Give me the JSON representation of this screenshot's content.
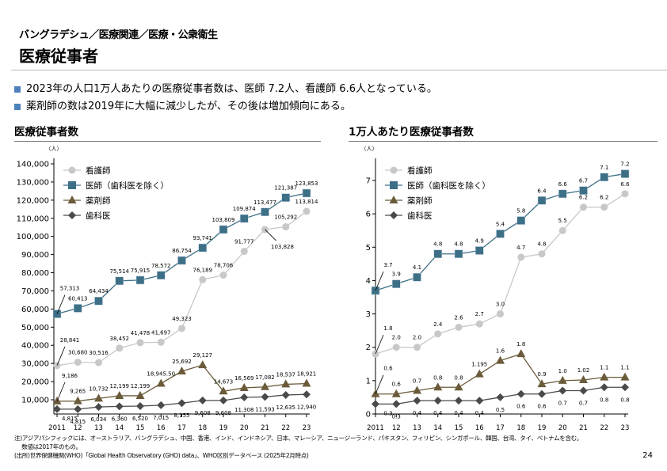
{
  "header": {
    "breadcrumb": "バングラデシュ／医療関連／医療・公衆衛生",
    "title": "医療従事者"
  },
  "bullets": [
    "2023年の人口1万人あたりの医療従事者数は、医師 7.2人、看護師 6.6人となっている。",
    "薬剤師の数は2019年に大幅に減少したが、その後は増加傾向にある。"
  ],
  "colors": {
    "nurse": "#c8c8c8",
    "doctor": "#3d6f86",
    "pharmacist": "#6b5b3a",
    "dentist": "#4a4a4a",
    "bullet": "#4f81bd"
  },
  "chart_data": [
    {
      "type": "line",
      "title": "医療従事者数",
      "unit": "（人）",
      "categories": [
        "2011",
        "12",
        "13",
        "14",
        "15",
        "16",
        "17",
        "18",
        "19",
        "20",
        "21",
        "22",
        "23"
      ],
      "ylim": [
        2000,
        140000
      ],
      "yticks": [
        "10,000",
        "20,000",
        "30,000",
        "40,000",
        "50,000",
        "60,000",
        "70,000",
        "80,000",
        "90,000",
        "100,000",
        "110,000",
        "120,000",
        "130,000",
        "140,000"
      ],
      "ytick_values": [
        10000,
        20000,
        30000,
        40000,
        50000,
        60000,
        70000,
        80000,
        90000,
        100000,
        110000,
        120000,
        130000,
        140000
      ],
      "legend": "top-left",
      "series": [
        {
          "name": "看護師",
          "marker": "circle",
          "values": [
            28841,
            30680,
            30516,
            38452,
            41478,
            41697,
            49323,
            76189,
            78706,
            91777,
            103828,
            105292,
            113814
          ],
          "labels": [
            "28,841",
            "30,680",
            "30,516",
            "38,452",
            "41,478",
            "41,697",
            "49,323",
            "76,189",
            "78,706",
            "91,777",
            "103,828",
            "105,292",
            "113,814"
          ]
        },
        {
          "name": "医師（歯科医を除く）",
          "marker": "square",
          "values": [
            57313,
            60413,
            64434,
            75514,
            75915,
            78572,
            86754,
            93741,
            103809,
            109874,
            113477,
            121387,
            123853
          ],
          "labels": [
            "57,313",
            "60,413",
            "64,434",
            "75,514",
            "75,915",
            "78,572",
            "86,754",
            "93,741",
            "103,809",
            "109,874",
            "113,477",
            "121,387",
            "123,853"
          ]
        },
        {
          "name": "薬剤師",
          "marker": "triangle",
          "values": [
            9186,
            9265,
            10732,
            12199,
            12199,
            18945.5,
            25692,
            29127,
            14673,
            16569,
            17082,
            18537,
            18921
          ],
          "labels": [
            "9,186",
            "9,265",
            "10,732",
            "12,199",
            "12,199",
            "18,945.50",
            "25,692",
            "29,127",
            "14,673",
            "16,569",
            "17,082",
            "18,537",
            "18,921"
          ]
        },
        {
          "name": "歯科医",
          "marker": "diamond",
          "values": [
            4815,
            4815,
            6034,
            6360,
            6520,
            7015,
            8155,
            9608,
            9608,
            11308,
            11593,
            12635,
            12940
          ],
          "labels": [
            "4,815",
            "4,815",
            "6,034",
            "6,360",
            "6,520",
            "7,015",
            "8,155",
            "9,608",
            "9,608",
            "11,308",
            "11,593",
            "12,635",
            "12,940"
          ]
        }
      ]
    },
    {
      "type": "line",
      "title": "1万人あたり医療従事者数",
      "unit": "（人）",
      "categories": [
        "2011",
        "12",
        "13",
        "14",
        "15",
        "16",
        "17",
        "18",
        "19",
        "20",
        "21",
        "22",
        "23"
      ],
      "ylim": [
        0,
        7.5
      ],
      "yticks": [
        "0",
        "1",
        "2",
        "3",
        "4",
        "5",
        "6",
        "7"
      ],
      "ytick_values": [
        0,
        1,
        2,
        3,
        4,
        5,
        6,
        7
      ],
      "legend": "top-left",
      "series": [
        {
          "name": "看護師",
          "marker": "circle",
          "values": [
            1.8,
            2.0,
            2.0,
            2.4,
            2.6,
            2.7,
            3.0,
            4.7,
            4.8,
            5.5,
            6.2,
            6.2,
            6.6
          ],
          "labels": [
            "1.8",
            "2.0",
            "2.0",
            "2.4",
            "2.6",
            "2.7",
            "3.0",
            "4.7",
            "4.8",
            "5.5",
            "6.2",
            "6.2",
            "6.6"
          ]
        },
        {
          "name": "医師（歯科医を除く）",
          "marker": "square",
          "values": [
            3.7,
            3.9,
            4.1,
            4.8,
            4.8,
            4.9,
            5.4,
            5.8,
            6.4,
            6.6,
            6.7,
            7.1,
            7.2
          ],
          "labels": [
            "3.7",
            "3.9",
            "4.1",
            "4.8",
            "4.8",
            "4.9",
            "5.4",
            "5.8",
            "6.4",
            "6.6",
            "6.7",
            "7.1",
            "7.2"
          ]
        },
        {
          "name": "薬剤師",
          "marker": "triangle",
          "values": [
            0.6,
            0.6,
            0.7,
            0.8,
            0.8,
            1.195,
            1.6,
            1.8,
            0.9,
            1.0,
            1.02,
            1.1,
            1.1
          ],
          "labels": [
            "0.6",
            "0.6",
            "0.7",
            "0.8",
            "0.8",
            "1.195",
            "1.6",
            "1.8",
            "0.9",
            "1.0",
            "1.02",
            "1.1",
            "1.1"
          ]
        },
        {
          "name": "歯科医",
          "marker": "diamond",
          "values": [
            0.3,
            0.3,
            0.4,
            0.4,
            0.4,
            0.4,
            0.5,
            0.6,
            0.6,
            0.7,
            0.7,
            0.8,
            0.8
          ],
          "labels": [
            "0.3",
            "0.3",
            "0.4",
            "0.4",
            "0.4",
            "0.4",
            "0.5",
            "0.6",
            "0.6",
            "0.7",
            "0.7",
            "0.8",
            "0.8"
          ]
        }
      ]
    }
  ],
  "footer": {
    "note1": "注)アジアパシフィックには、オーストラリア、バングラデシュ、中国、香港、インド、インドネシア、日本、マレーシア、ニュージーランド、パキスタン、フィリピン、シンガポール、韓国、台湾、タイ、ベトナムを含む。",
    "note2": "　 数値は2017年のもの。",
    "source": "(出所)世界保健機関(WHO)「Global Health Observatory (GHO) data」、WHO区別データベース (2025年2月時点)",
    "page": "24"
  }
}
